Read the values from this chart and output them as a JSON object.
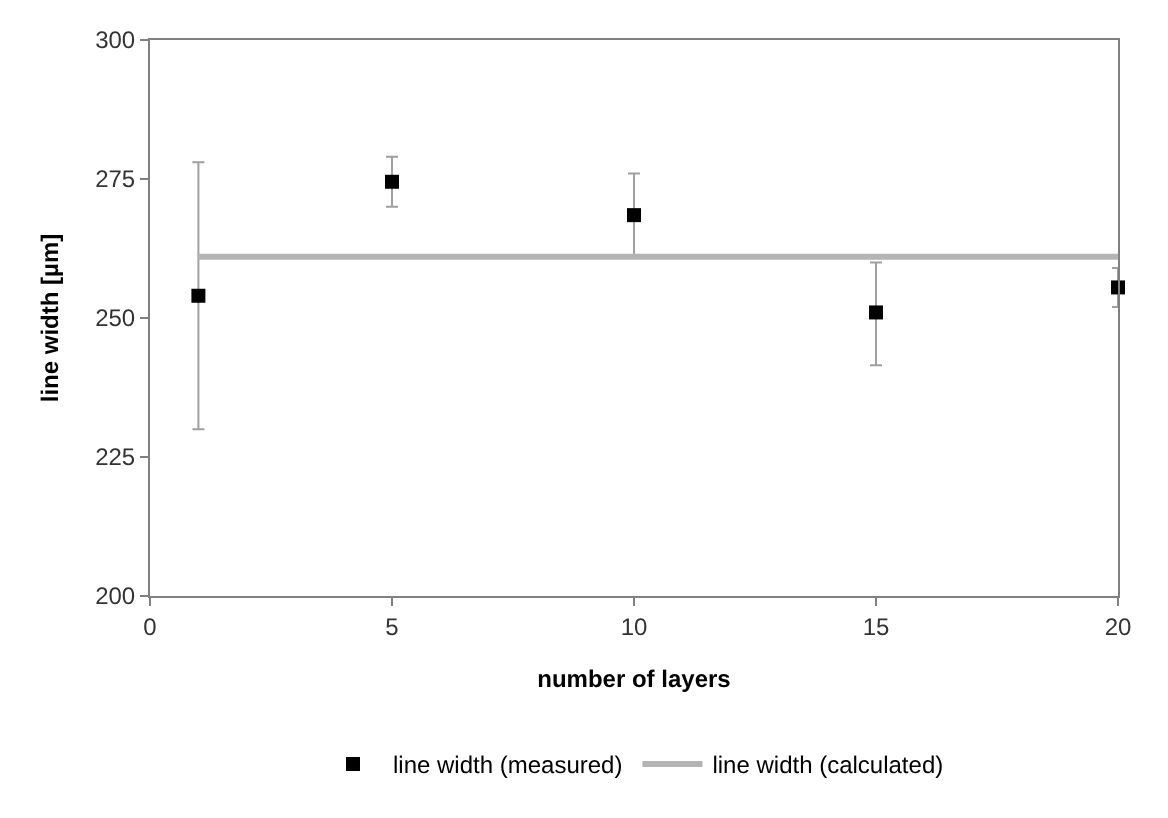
{
  "chart_data": {
    "type": "scatter",
    "xlabel": "number of layers",
    "ylabel": "line width [µm]",
    "xlim": [
      0,
      20
    ],
    "xticks": [
      0,
      5,
      10,
      15,
      20
    ],
    "ylim": [
      200,
      300
    ],
    "yticks": [
      200,
      225,
      250,
      275,
      300
    ],
    "legend": "bottom",
    "series": [
      {
        "name": "line width (measured)",
        "marker": "square",
        "color": "#000000",
        "x": [
          1,
          5,
          10,
          15,
          20
        ],
        "values": [
          254,
          274.5,
          268.5,
          251,
          255.5
        ],
        "errors": [
          [
            230,
            278
          ],
          [
            270,
            279
          ],
          [
            261,
            276
          ],
          [
            241.5,
            260
          ],
          [
            252,
            259
          ]
        ]
      },
      {
        "name": "line width (calculated)",
        "type": "line",
        "marker": "none",
        "line_style": "solid",
        "color": "#b4b4b4",
        "x": [
          1,
          20
        ],
        "values": [
          261,
          261
        ]
      }
    ]
  }
}
